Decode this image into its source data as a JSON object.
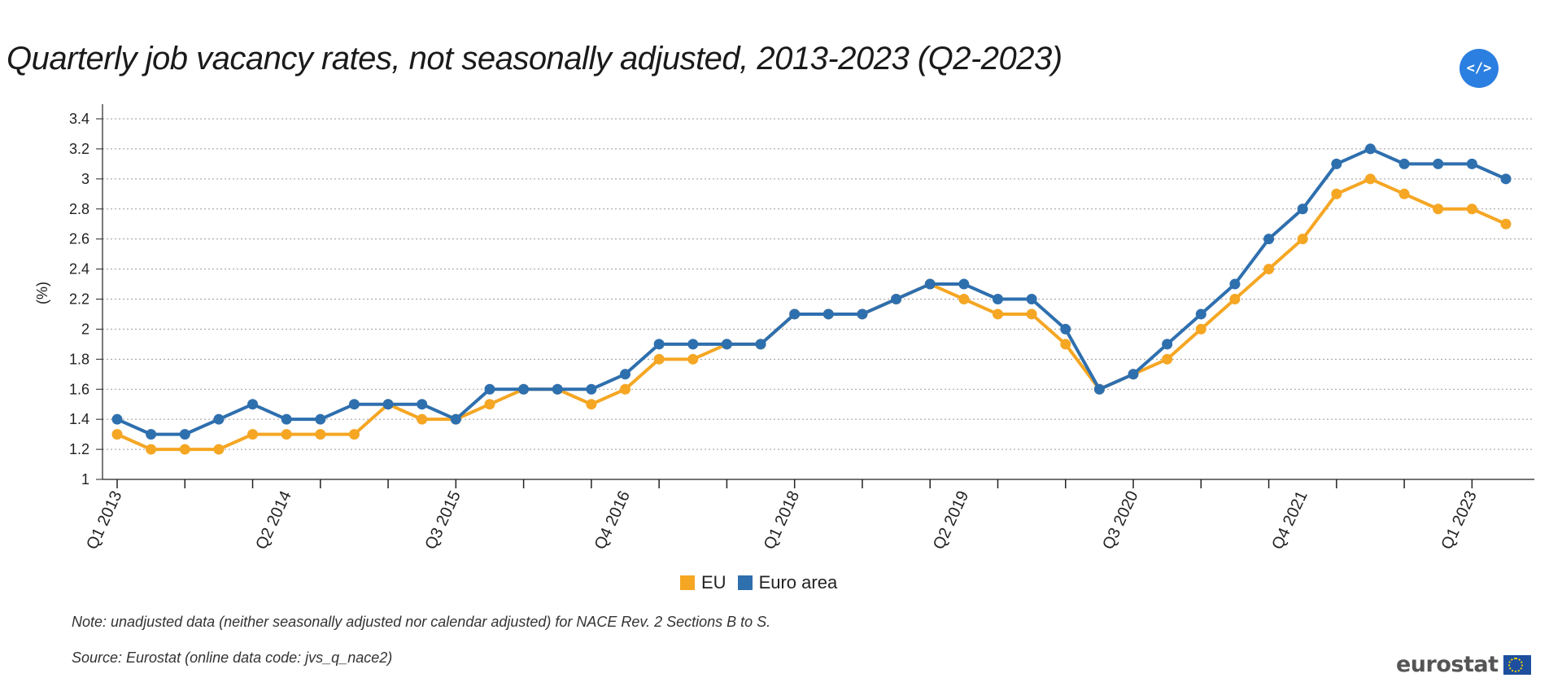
{
  "header": {
    "title": "Quarterly job vacancy rates, not seasonally adjusted, 2013-2023 (Q2-2023)",
    "embed_label": "</>"
  },
  "chart_data": {
    "type": "line",
    "title": "Quarterly job vacancy rates, not seasonally adjusted, 2013-2023 (Q2-2023)",
    "ylabel": "(%)",
    "xlabel": "",
    "ylim": [
      1,
      3.4
    ],
    "yticks": [
      1,
      1.2,
      1.4,
      1.6,
      1.8,
      2,
      2.2,
      2.4,
      2.6,
      2.8,
      3,
      3.2,
      3.4
    ],
    "categories": [
      "Q1 2013",
      "Q2 2013",
      "Q3 2013",
      "Q4 2013",
      "Q1 2014",
      "Q2 2014",
      "Q3 2014",
      "Q4 2014",
      "Q1 2015",
      "Q2 2015",
      "Q3 2015",
      "Q4 2015",
      "Q1 2016",
      "Q2 2016",
      "Q3 2016",
      "Q4 2016",
      "Q1 2017",
      "Q2 2017",
      "Q3 2017",
      "Q4 2017",
      "Q1 2018",
      "Q2 2018",
      "Q3 2018",
      "Q4 2018",
      "Q1 2019",
      "Q2 2019",
      "Q3 2019",
      "Q4 2019",
      "Q1 2020",
      "Q2 2020",
      "Q3 2020",
      "Q4 2020",
      "Q1 2021",
      "Q2 2021",
      "Q3 2021",
      "Q4 2021",
      "Q1 2022",
      "Q2 2022",
      "Q3 2022",
      "Q4 2022",
      "Q1 2023",
      "Q2 2023"
    ],
    "x_tick_labels": [
      "Q1 2013",
      "Q2 2014",
      "Q3 2015",
      "Q4 2016",
      "Q1 2018",
      "Q2 2019",
      "Q3 2020",
      "Q4 2021",
      "Q1 2023"
    ],
    "series": [
      {
        "name": "EU",
        "color": "#f5a623",
        "values": [
          1.3,
          1.2,
          1.2,
          1.2,
          1.3,
          1.3,
          1.3,
          1.3,
          1.5,
          1.4,
          1.4,
          1.5,
          1.6,
          1.6,
          1.5,
          1.6,
          1.8,
          1.8,
          1.9,
          1.9,
          2.1,
          2.1,
          2.1,
          2.2,
          2.3,
          2.2,
          2.1,
          2.1,
          1.9,
          1.6,
          1.7,
          1.8,
          2.0,
          2.2,
          2.4,
          2.6,
          2.9,
          3.0,
          2.9,
          2.8,
          2.8,
          2.7
        ]
      },
      {
        "name": "Euro area",
        "color": "#2e6fae",
        "values": [
          1.4,
          1.3,
          1.3,
          1.4,
          1.5,
          1.4,
          1.4,
          1.5,
          1.5,
          1.5,
          1.4,
          1.6,
          1.6,
          1.6,
          1.6,
          1.7,
          1.9,
          1.9,
          1.9,
          1.9,
          2.1,
          2.1,
          2.1,
          2.2,
          2.3,
          2.3,
          2.2,
          2.2,
          2.0,
          1.6,
          1.7,
          1.9,
          2.1,
          2.3,
          2.6,
          2.8,
          3.1,
          3.2,
          3.1,
          3.1,
          3.1,
          3.0
        ]
      }
    ],
    "legend_position": "bottom-center",
    "grid": true
  },
  "footer": {
    "note": "Note: unadjusted data (neither seasonally adjusted nor calendar adjusted) for NACE Rev. 2 Sections B to S.",
    "source": "Source: Eurostat (online data code: jvs_q_nace2)",
    "logo_text": "eurostat"
  }
}
